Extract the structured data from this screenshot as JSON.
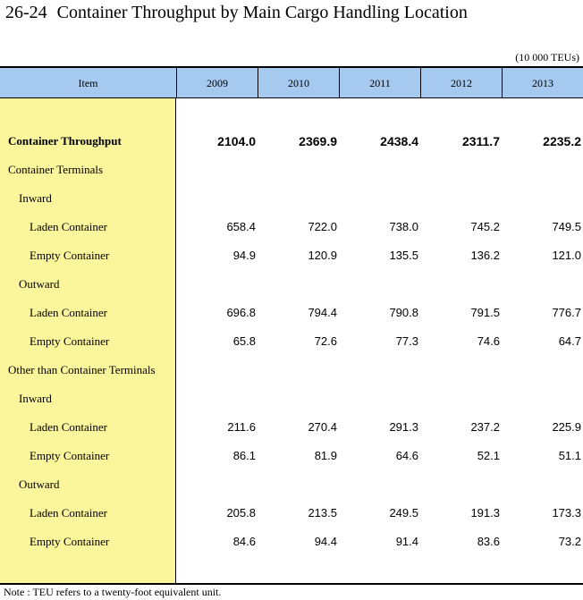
{
  "title": {
    "number": "26-24",
    "text": "Container Throughput by Main Cargo Handling Location"
  },
  "unit": "(10 000 TEUs)",
  "table": {
    "item_header": "Item",
    "years": [
      "2009",
      "2010",
      "2011",
      "2012",
      "2013"
    ],
    "rows": [
      {
        "label": "Container Throughput",
        "level": 0,
        "bold": true,
        "values": [
          "2104.0",
          "2369.9",
          "2438.4",
          "2311.7",
          "2235.2"
        ]
      },
      {
        "label": "Container Terminals",
        "level": 0,
        "values": []
      },
      {
        "label": "Inward",
        "level": 1,
        "values": []
      },
      {
        "label": "Laden Container",
        "level": 2,
        "values": [
          "658.4",
          "722.0",
          "738.0",
          "745.2",
          "749.5"
        ]
      },
      {
        "label": "Empty Container",
        "level": 2,
        "values": [
          "94.9",
          "120.9",
          "135.5",
          "136.2",
          "121.0"
        ]
      },
      {
        "label": "Outward",
        "level": 1,
        "values": []
      },
      {
        "label": "Laden Container",
        "level": 2,
        "values": [
          "696.8",
          "794.4",
          "790.8",
          "791.5",
          "776.7"
        ]
      },
      {
        "label": "Empty Container",
        "level": 2,
        "values": [
          "65.8",
          "72.6",
          "77.3",
          "74.6",
          "64.7"
        ]
      },
      {
        "label": "Other than Container Terminals",
        "level": 0,
        "values": []
      },
      {
        "label": "Inward",
        "level": 1,
        "values": []
      },
      {
        "label": "Laden Container",
        "level": 2,
        "values": [
          "211.6",
          "270.4",
          "291.3",
          "237.2",
          "225.9"
        ]
      },
      {
        "label": "Empty Container",
        "level": 2,
        "values": [
          "86.1",
          "81.9",
          "64.6",
          "52.1",
          "51.1"
        ]
      },
      {
        "label": "Outward",
        "level": 1,
        "values": []
      },
      {
        "label": "Laden Container",
        "level": 2,
        "values": [
          "205.8",
          "213.5",
          "249.5",
          "191.3",
          "173.3"
        ]
      },
      {
        "label": "Empty Container",
        "level": 2,
        "values": [
          "84.6",
          "94.4",
          "91.4",
          "83.6",
          "73.2"
        ]
      }
    ]
  },
  "note": "Note : TEU refers to a twenty-foot equivalent unit."
}
